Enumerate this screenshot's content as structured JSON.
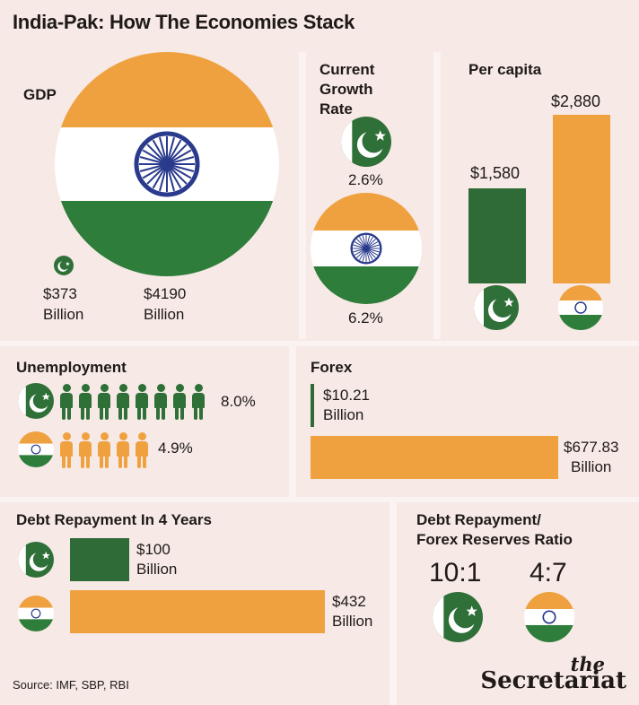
{
  "title": "India-Pak: How The Economies Stack",
  "colors": {
    "saffron": "#f0a13f",
    "green": "#2e6b36",
    "pak_green": "#2f6f38",
    "chakra": "#2a3a8c",
    "background": "#f6e9e6"
  },
  "icons": {
    "pakistan_flag": "pakistan-flag-icon",
    "india_flag": "india-flag-icon",
    "person": "person-icon"
  },
  "gdp": {
    "label": "GDP",
    "pakistan": {
      "line1": "$373",
      "line2": "Billion"
    },
    "india": {
      "line1": "$4190",
      "line2": "Billion"
    }
  },
  "growth": {
    "label_lines": [
      "Current",
      "Growth",
      "Rate"
    ],
    "pakistan": "2.6%",
    "india": "6.2%"
  },
  "per_capita": {
    "label": "Per capita",
    "pakistan": "$1,580",
    "india": "$2,880"
  },
  "unemployment": {
    "label": "Unemployment",
    "pakistan": "8.0%",
    "india": "4.9%"
  },
  "forex": {
    "label": "Forex",
    "pakistan": {
      "line1": "$10.21",
      "line2": "Billion"
    },
    "india": {
      "line1": "$677.83",
      "line2": "Billion"
    }
  },
  "debt": {
    "label": "Debt Repayment In 4 Years",
    "pakistan": {
      "line1": "$100",
      "line2": "Billion"
    },
    "india": {
      "line1": "$432",
      "line2": "Billion"
    }
  },
  "ratio": {
    "label_lines": [
      "Debt Repayment/",
      "Forex Reserves Ratio"
    ],
    "pakistan": "10:1",
    "india": "4:7"
  },
  "source": "Source: IMF, SBP, RBI",
  "brand": {
    "small": "the",
    "main": "Secretariat"
  },
  "chart_data": [
    {
      "type": "bar",
      "title": "GDP",
      "categories": [
        "Pakistan",
        "India"
      ],
      "values": [
        373,
        4190
      ],
      "unit": "$ Billion"
    },
    {
      "type": "bar",
      "title": "Current Growth Rate",
      "categories": [
        "Pakistan",
        "India"
      ],
      "values": [
        2.6,
        6.2
      ],
      "unit": "%"
    },
    {
      "type": "bar",
      "title": "Per capita",
      "categories": [
        "Pakistan",
        "India"
      ],
      "values": [
        1580,
        2880
      ],
      "unit": "$"
    },
    {
      "type": "bar",
      "title": "Unemployment",
      "categories": [
        "Pakistan",
        "India"
      ],
      "values": [
        8.0,
        4.9
      ],
      "unit": "%"
    },
    {
      "type": "bar",
      "title": "Forex",
      "categories": [
        "Pakistan",
        "India"
      ],
      "values": [
        10.21,
        677.83
      ],
      "unit": "$ Billion"
    },
    {
      "type": "bar",
      "title": "Debt Repayment In 4 Years",
      "categories": [
        "Pakistan",
        "India"
      ],
      "values": [
        100,
        432
      ],
      "unit": "$ Billion"
    },
    {
      "type": "table",
      "title": "Debt Repayment/ Forex Reserves Ratio",
      "categories": [
        "Pakistan",
        "India"
      ],
      "values": [
        "10:1",
        "4:7"
      ]
    }
  ]
}
